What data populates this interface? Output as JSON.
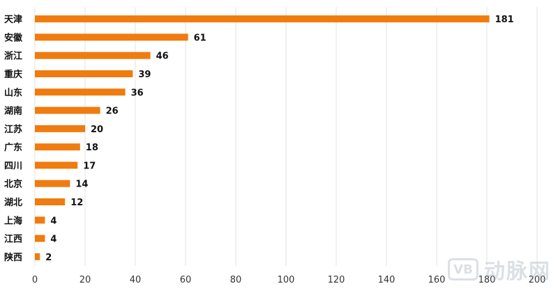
{
  "chart_data": {
    "type": "bar",
    "orientation": "horizontal",
    "categories": [
      "天津",
      "安徽",
      "浙江",
      "重庆",
      "山东",
      "湖南",
      "江苏",
      "广东",
      "四川",
      "北京",
      "湖北",
      "上海",
      "江西",
      "陕西"
    ],
    "values": [
      181,
      61,
      46,
      39,
      36,
      26,
      20,
      18,
      17,
      14,
      12,
      4,
      4,
      2
    ],
    "title": "",
    "xlabel": "",
    "ylabel": "",
    "xlim": [
      0,
      200
    ],
    "xticks": [
      0,
      20,
      40,
      60,
      80,
      100,
      120,
      140,
      160,
      180,
      200
    ],
    "grid": true,
    "legend": "none",
    "data_labels": true,
    "bar_color": "#f07b0e"
  },
  "watermark": {
    "logo_text": "VB",
    "text": "动脉网"
  }
}
